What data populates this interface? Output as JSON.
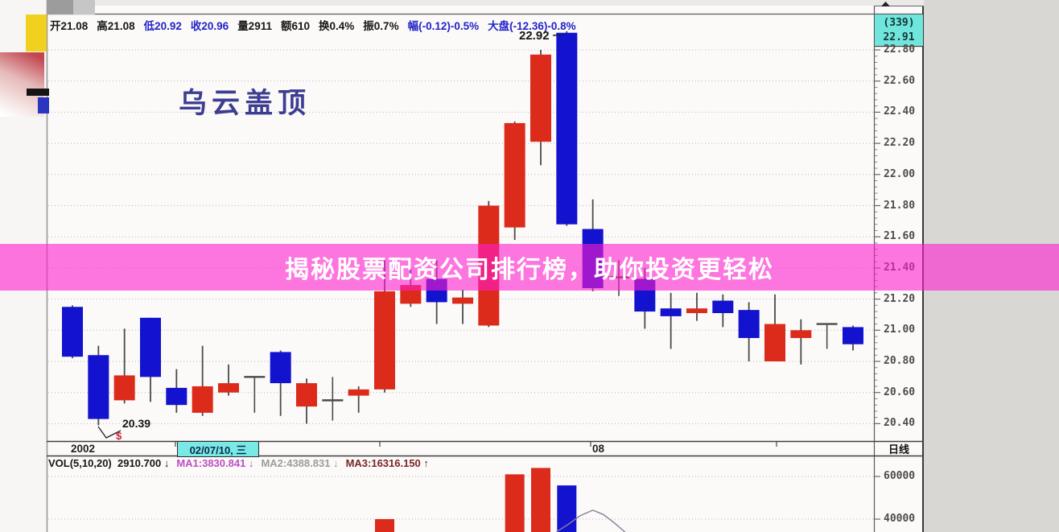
{
  "info_bar": {
    "segments": [
      {
        "text": "开21.08",
        "color": "dark"
      },
      {
        "text": "高21.08",
        "color": "dark"
      },
      {
        "text": "低20.92",
        "color": "blue"
      },
      {
        "text": "收20.96",
        "color": "blue"
      },
      {
        "text": "量2911",
        "color": "dark"
      },
      {
        "text": "额610",
        "color": "dark"
      },
      {
        "text": "换0.4%",
        "color": "dark"
      },
      {
        "text": "振0.7%",
        "color": "dark"
      },
      {
        "text": "幅(-0.12)-0.5%",
        "color": "blue"
      },
      {
        "text": "大盘(-12.36)-0.8%",
        "color": "blue"
      }
    ]
  },
  "right_axis": {
    "header_line1": "(339)",
    "header_line2": "22.91",
    "period_label": "日线"
  },
  "x_axis": {
    "year": "2002",
    "selected_date": "02/07/10, 三",
    "month": "08"
  },
  "annotations": {
    "pattern_label": "乌云盖顶",
    "peak_label": "22.92",
    "low_label": "20.39",
    "dollar_marker": "$"
  },
  "banner": {
    "text": "揭秘股票配资公司排行榜，助你投资更轻松"
  },
  "volume_readout": {
    "segments": [
      {
        "text": "VOL(5,10,20)  2910.700 ↓",
        "color": "dark"
      },
      {
        "text": "MA1:3830.841 ↓",
        "color": "ma1"
      },
      {
        "text": "MA2:4388.831 ↓",
        "color": "ma2"
      },
      {
        "text": "MA3:16316.150 ↑",
        "color": "ma3"
      }
    ]
  },
  "colors": {
    "dark": "#161616",
    "blue": "#2323c8",
    "up": "#dc2a1b",
    "down": "#1212cf",
    "doji": "#4a4a4a",
    "wick": "#4a4a4a",
    "ma1": "#bb4fc4",
    "ma2": "#9c9c9c",
    "ma3": "#7a2424",
    "axis_text": "#4b4b4b",
    "grid": "#b8b8b8",
    "highlight_cyan": "#79e9e6",
    "header_cyan": "#70e5dc",
    "banner_bg": "rgba(255,28,205,0.60)",
    "vol_ma_line": "#8a7f9a",
    "pattern_text": "#3d3d92",
    "marker_red": "#cc2233"
  },
  "chart_data": {
    "type": "candlestick",
    "title": "乌云盖顶 (dark cloud cover pattern, daily candles)",
    "y_axis": {
      "ticks": [
        22.8,
        22.6,
        22.4,
        22.2,
        22.0,
        21.8,
        21.6,
        21.4,
        21.2,
        21.0,
        20.8,
        20.6,
        20.4
      ],
      "range": [
        20.3,
        22.95
      ]
    },
    "x_axis_marks": {
      "year": "2002",
      "selected_date": "02/07/10, 三",
      "month": "08"
    },
    "candles": [
      {
        "o": 21.15,
        "h": 21.16,
        "l": 20.82,
        "c": 20.83,
        "k": "down"
      },
      {
        "o": 20.84,
        "h": 20.9,
        "l": 20.39,
        "c": 20.43,
        "k": "down"
      },
      {
        "o": 20.55,
        "h": 21.01,
        "l": 20.53,
        "c": 20.71,
        "k": "up"
      },
      {
        "o": 21.08,
        "h": 21.08,
        "l": 20.54,
        "c": 20.7,
        "k": "down"
      },
      {
        "o": 20.63,
        "h": 20.75,
        "l": 20.47,
        "c": 20.52,
        "k": "down"
      },
      {
        "o": 20.47,
        "h": 20.9,
        "l": 20.45,
        "c": 20.64,
        "k": "up"
      },
      {
        "o": 20.6,
        "h": 20.78,
        "l": 20.58,
        "c": 20.66,
        "k": "up"
      },
      {
        "o": 20.7,
        "h": 20.7,
        "l": 20.47,
        "c": 20.7,
        "k": "doji"
      },
      {
        "o": 20.86,
        "h": 20.87,
        "l": 20.45,
        "c": 20.66,
        "k": "down"
      },
      {
        "o": 20.51,
        "h": 20.69,
        "l": 20.4,
        "c": 20.66,
        "k": "up"
      },
      {
        "o": 20.55,
        "h": 20.7,
        "l": 20.42,
        "c": 20.55,
        "k": "doji"
      },
      {
        "o": 20.58,
        "h": 20.64,
        "l": 20.47,
        "c": 20.62,
        "k": "up"
      },
      {
        "o": 20.62,
        "h": 21.45,
        "l": 20.6,
        "c": 21.25,
        "k": "up"
      },
      {
        "o": 21.17,
        "h": 21.4,
        "l": 21.15,
        "c": 21.29,
        "k": "up"
      },
      {
        "o": 21.33,
        "h": 21.45,
        "l": 21.04,
        "c": 21.18,
        "k": "down"
      },
      {
        "o": 21.17,
        "h": 21.26,
        "l": 21.04,
        "c": 21.21,
        "k": "up"
      },
      {
        "o": 21.03,
        "h": 21.83,
        "l": 21.02,
        "c": 21.8,
        "k": "up"
      },
      {
        "o": 21.66,
        "h": 22.34,
        "l": 21.58,
        "c": 22.33,
        "k": "up"
      },
      {
        "o": 22.21,
        "h": 22.8,
        "l": 22.06,
        "c": 22.77,
        "k": "up"
      },
      {
        "o": 22.91,
        "h": 22.92,
        "l": 21.67,
        "c": 21.68,
        "k": "down"
      },
      {
        "o": 21.65,
        "h": 21.84,
        "l": 21.25,
        "c": 21.27,
        "k": "down"
      },
      {
        "o": 21.34,
        "h": 21.45,
        "l": 21.22,
        "c": 21.34,
        "k": "doji"
      },
      {
        "o": 21.33,
        "h": 21.4,
        "l": 21.01,
        "c": 21.12,
        "k": "down"
      },
      {
        "o": 21.14,
        "h": 21.24,
        "l": 20.88,
        "c": 21.09,
        "k": "down"
      },
      {
        "o": 21.11,
        "h": 21.24,
        "l": 21.06,
        "c": 21.14,
        "k": "up"
      },
      {
        "o": 21.19,
        "h": 21.23,
        "l": 21.02,
        "c": 21.11,
        "k": "down"
      },
      {
        "o": 21.13,
        "h": 21.18,
        "l": 20.8,
        "c": 20.95,
        "k": "down"
      },
      {
        "o": 20.8,
        "h": 21.23,
        "l": 20.8,
        "c": 21.04,
        "k": "up"
      },
      {
        "o": 20.95,
        "h": 21.07,
        "l": 20.78,
        "c": 21.0,
        "k": "up"
      },
      {
        "o": 21.04,
        "h": 21.04,
        "l": 20.88,
        "c": 21.04,
        "k": "doji"
      },
      {
        "o": 21.02,
        "h": 21.03,
        "l": 20.87,
        "c": 20.91,
        "k": "down"
      }
    ],
    "annotated_points": {
      "peak_price": 22.92,
      "low_price": 20.39
    },
    "volume": {
      "y_ticks": [
        60000,
        40000
      ],
      "bars": [
        {
          "i": 13,
          "v": 40000,
          "k": "up"
        },
        {
          "i": 18,
          "v": 61000,
          "k": "up"
        },
        {
          "i": 19,
          "v": 64000,
          "k": "up"
        },
        {
          "i": 20,
          "v": 55800,
          "k": "down"
        }
      ],
      "ma_line": [
        {
          "i": 19.6,
          "v": 34000
        },
        {
          "i": 20.05,
          "v": 37500
        },
        {
          "i": 20.5,
          "v": 41500
        },
        {
          "i": 21.0,
          "v": 44200
        },
        {
          "i": 21.4,
          "v": 42200
        },
        {
          "i": 21.8,
          "v": 38500
        },
        {
          "i": 22.25,
          "v": 33800
        }
      ]
    }
  }
}
